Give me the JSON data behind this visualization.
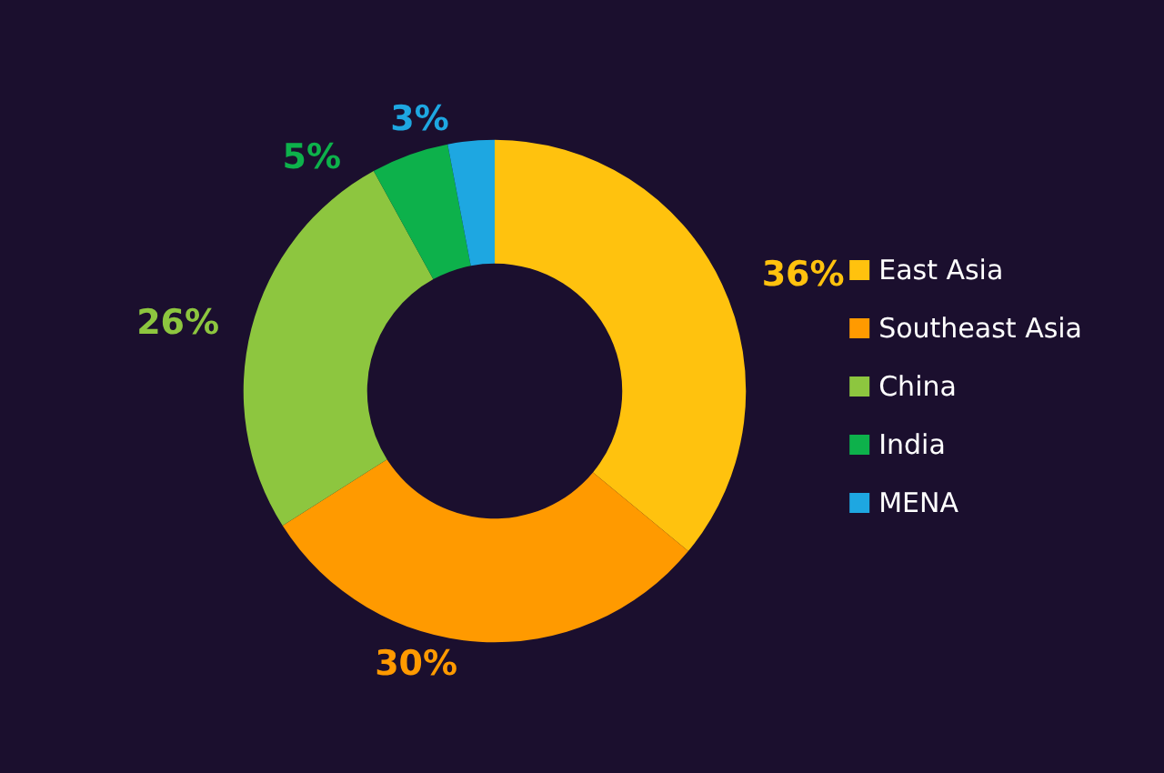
{
  "chart_data": {
    "type": "donut",
    "categories": [
      "East Asia",
      "Southeast Asia",
      "China",
      "India",
      "MENA"
    ],
    "values": [
      36,
      30,
      26,
      5,
      3
    ],
    "value_labels": [
      "36%",
      "30%",
      "26%",
      "5%",
      "3%"
    ],
    "colors": [
      "#ffc20e",
      "#ff9a00",
      "#8dc63f",
      "#0db14b",
      "#1ea7e1"
    ],
    "legend": "right"
  }
}
